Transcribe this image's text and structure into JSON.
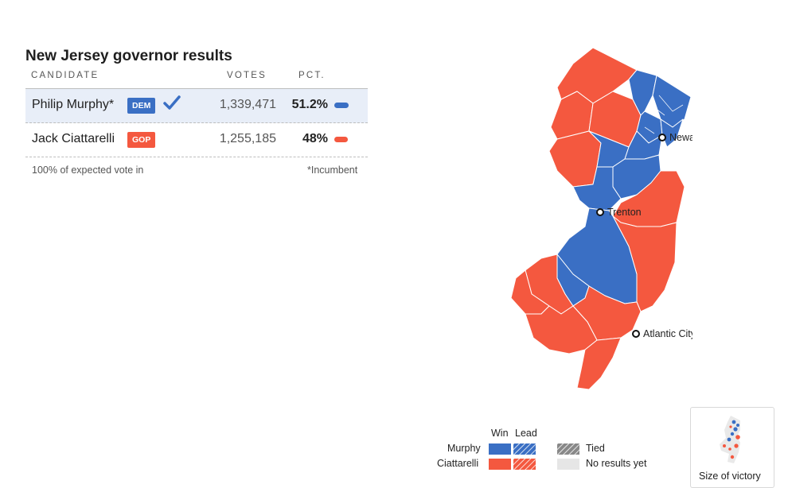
{
  "title": "New Jersey governor results",
  "columns": {
    "candidate": "CANDIDATE",
    "votes": "VOTES",
    "pct": "PCT."
  },
  "candidates": [
    {
      "name": "Philip Murphy*",
      "party": "DEM",
      "votes": "1,339,471",
      "pct": "51.2%",
      "pct_value": 51.2,
      "winner": true,
      "color": "#3a6fc4"
    },
    {
      "name": "Jack Ciattarelli",
      "party": "GOP",
      "votes": "1,255,185",
      "pct": "48%",
      "pct_value": 48.0,
      "winner": false,
      "color": "#f4583f"
    }
  ],
  "footer": {
    "reporting": "100% of expected vote in",
    "note": "*Incumbent"
  },
  "map": {
    "cities": [
      "Newark",
      "Trenton",
      "Atlantic City"
    ],
    "colors": {
      "murphy": "#3a6fc4",
      "ciattarelli": "#f4583f"
    }
  },
  "legend": {
    "win": "Win",
    "lead": "Lead",
    "murphy": "Murphy",
    "ciattarelli": "Ciattarelli",
    "tied": "Tied",
    "no_results": "No results yet"
  },
  "size_of_victory": "Size of victory"
}
